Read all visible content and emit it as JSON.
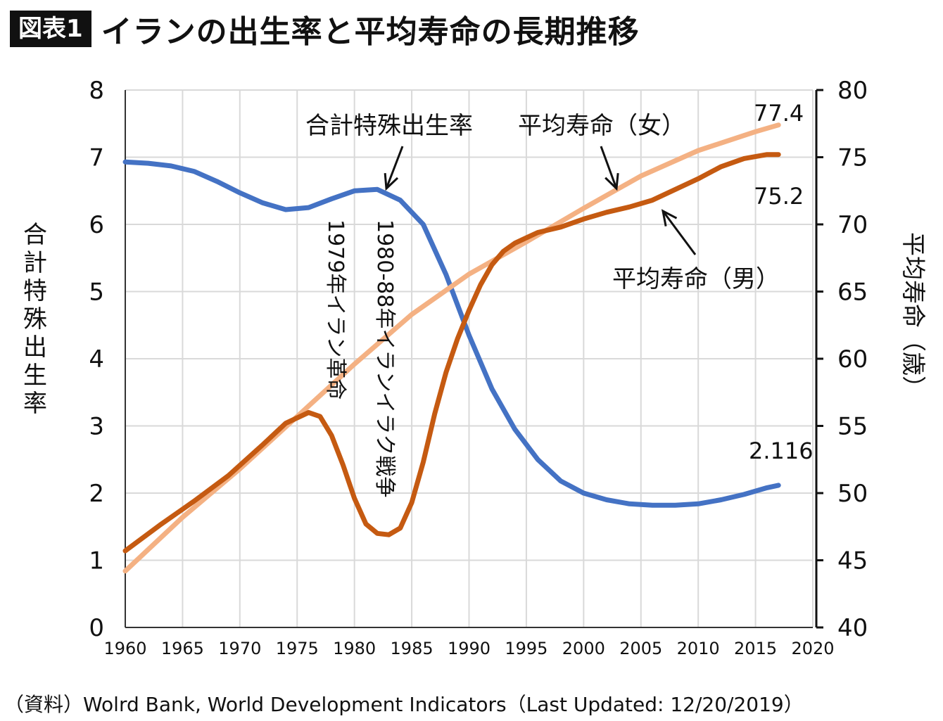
{
  "header": {
    "badge": "図表1",
    "title": "イランの出生率と平均寿命の長期推移"
  },
  "source": "（資料）Wolrd Bank, World Development Indicators（Last Updated: 12/20/2019）",
  "colors": {
    "tfr": "#4472C4",
    "le_female": "#F4B183",
    "le_male": "#C55A11",
    "grid": "#D9D9D9"
  },
  "chart_data": {
    "type": "line",
    "xlim": [
      1960,
      2020
    ],
    "x_ticks": [
      1960,
      1965,
      1970,
      1975,
      1980,
      1985,
      1990,
      1995,
      2000,
      2005,
      2010,
      2015,
      2020
    ],
    "ylim_left": [
      0,
      8
    ],
    "y_ticks_left": [
      0,
      1,
      2,
      3,
      4,
      5,
      6,
      7,
      8
    ],
    "ylim_right": [
      40,
      80
    ],
    "y_ticks_right": [
      40,
      45,
      50,
      55,
      60,
      65,
      70,
      75,
      80
    ],
    "ylabel_left": "合計特殊出生率",
    "ylabel_right": "平均寿命（歳）",
    "grid": true,
    "series": [
      {
        "name": "合計特殊出生率",
        "axis": "left",
        "color": "#4472C4",
        "x": [
          1960,
          1962,
          1964,
          1966,
          1968,
          1970,
          1972,
          1974,
          1976,
          1978,
          1980,
          1982,
          1984,
          1986,
          1988,
          1990,
          1992,
          1994,
          1996,
          1998,
          2000,
          2002,
          2004,
          2006,
          2008,
          2010,
          2012,
          2014,
          2016,
          2017
        ],
        "y": [
          6.93,
          6.91,
          6.87,
          6.79,
          6.64,
          6.47,
          6.32,
          6.22,
          6.25,
          6.38,
          6.5,
          6.52,
          6.36,
          6.0,
          5.25,
          4.35,
          3.55,
          2.95,
          2.5,
          2.18,
          2.0,
          1.9,
          1.84,
          1.82,
          1.82,
          1.84,
          1.9,
          1.98,
          2.08,
          2.116
        ]
      },
      {
        "name": "平均寿命（女）",
        "axis": "right",
        "color": "#F4B183",
        "x": [
          1960,
          1965,
          1970,
          1975,
          1980,
          1985,
          1990,
          1995,
          2000,
          2005,
          2010,
          2015,
          2017
        ],
        "y": [
          44.2,
          48.2,
          51.8,
          55.7,
          59.6,
          63.3,
          66.3,
          68.7,
          71.2,
          73.6,
          75.5,
          76.9,
          77.4
        ]
      },
      {
        "name": "平均寿命（男）",
        "axis": "right",
        "color": "#C55A11",
        "x": [
          1960,
          1963,
          1966,
          1969,
          1972,
          1974,
          1976,
          1977,
          1978,
          1979,
          1980,
          1981,
          1982,
          1983,
          1984,
          1985,
          1986,
          1987,
          1988,
          1989,
          1990,
          1991,
          1992,
          1993,
          1994,
          1995,
          1996,
          1998,
          2000,
          2002,
          2004,
          2006,
          2008,
          2010,
          2012,
          2014,
          2016,
          2017
        ],
        "y": [
          45.7,
          47.6,
          49.4,
          51.3,
          53.6,
          55.2,
          56.0,
          55.7,
          54.3,
          52.1,
          49.6,
          47.7,
          47.0,
          46.9,
          47.4,
          49.3,
          52.3,
          55.9,
          59.0,
          61.5,
          63.6,
          65.5,
          67.0,
          68.0,
          68.6,
          69.0,
          69.4,
          69.8,
          70.4,
          70.9,
          71.3,
          71.8,
          72.6,
          73.4,
          74.3,
          74.9,
          75.2,
          75.2
        ]
      }
    ],
    "annotations": {
      "tfr_label": "合計特殊出生率",
      "female_label": "平均寿命（女）",
      "male_label": "平均寿命（男）",
      "revolution": "1979年イラン革命",
      "war": "1980-88年イランイラク戦争",
      "value_female": "77.4",
      "value_male": "75.2",
      "value_tfr": "2.116"
    }
  }
}
